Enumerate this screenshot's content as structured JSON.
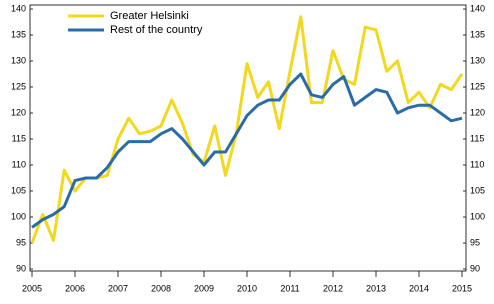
{
  "chart_data": {
    "type": "line",
    "categories": [
      "2005",
      null,
      null,
      null,
      "2006",
      null,
      null,
      null,
      "2007",
      null,
      null,
      null,
      "2008",
      null,
      null,
      null,
      "2009",
      null,
      null,
      null,
      "2010",
      null,
      null,
      null,
      "2011",
      null,
      null,
      null,
      "2012",
      null,
      null,
      null,
      "2013",
      null,
      null,
      null,
      "2014",
      null,
      null,
      null,
      "2015"
    ],
    "series": [
      {
        "name": "Greater Helsinki",
        "color": "#f2d81f",
        "values": [
          95,
          100.5,
          95.5,
          109,
          105,
          107.5,
          107.5,
          108,
          115,
          119,
          116,
          116.5,
          117.5,
          122.5,
          118,
          112,
          110.5,
          117.5,
          108,
          116,
          129.5,
          123,
          126,
          117,
          128,
          138.5,
          122,
          122,
          132,
          126.5,
          125.5,
          136.5,
          136,
          128,
          130,
          122,
          124,
          121,
          125.5,
          124.5,
          127.5
        ]
      },
      {
        "name": "Rest of the country",
        "color": "#2a6ca8",
        "values": [
          98,
          99.5,
          100.5,
          102,
          107,
          107.5,
          107.5,
          109.5,
          112.5,
          114.5,
          114.5,
          114.5,
          116,
          117,
          115,
          112.5,
          110,
          112.5,
          112.5,
          116,
          119.5,
          121.5,
          122.5,
          122.5,
          125.5,
          127.5,
          123.5,
          123,
          125.5,
          127,
          121.5,
          123,
          124.5,
          124,
          120,
          121,
          121.5,
          121.5,
          120,
          118.5,
          119
        ]
      }
    ],
    "ylim": [
      90,
      140
    ],
    "yticks": [
      90,
      95,
      100,
      105,
      110,
      115,
      120,
      125,
      130,
      135,
      140
    ],
    "y2lim": [
      90,
      140
    ],
    "y2ticks": [
      90,
      95,
      100,
      105,
      110,
      115,
      120,
      125,
      130,
      135,
      140
    ],
    "grid": false,
    "legend": "upper-left"
  }
}
